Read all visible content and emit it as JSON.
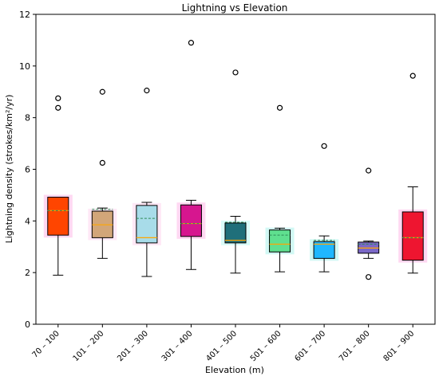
{
  "chart_data": {
    "type": "box",
    "title": "Lightning vs Elevation",
    "xlabel": "Elevation (m)",
    "ylabel": "Lightning density (strokes/km²/yr)",
    "ylim": [
      0,
      12
    ],
    "yticks": [
      "0",
      "2",
      "4",
      "6",
      "8",
      "10",
      "12"
    ],
    "grid": false,
    "categories": [
      "70 – 100",
      "101 – 200",
      "201 – 300",
      "301 – 400",
      "401 – 500",
      "501 – 600",
      "601 – 700",
      "701 – 800",
      "801 – 900"
    ],
    "boxes": [
      {
        "whislo": 1.9,
        "q1": 3.45,
        "med": 4.4,
        "mean": 4.4,
        "q3": 4.92,
        "whishi": 4.92,
        "fliers": [
          8.38,
          8.75
        ],
        "color": "#ff4500",
        "glow": "#ffd1f0"
      },
      {
        "whislo": 2.55,
        "q1": 3.35,
        "med": 3.85,
        "mean": 4.45,
        "q3": 4.38,
        "whishi": 4.5,
        "fliers": [
          6.25,
          9.0
        ],
        "color": "#d2a679",
        "glow": "#ffe4f5"
      },
      {
        "whislo": 1.85,
        "q1": 3.15,
        "med": 3.35,
        "mean": 4.1,
        "q3": 4.6,
        "whishi": 4.72,
        "fliers": [
          9.05
        ],
        "color": "#a8dce9",
        "glow": "#ffe4f5"
      },
      {
        "whislo": 2.12,
        "q1": 3.4,
        "med": 3.9,
        "mean": 3.9,
        "q3": 4.62,
        "whishi": 4.8,
        "fliers": [
          10.9
        ],
        "color": "#d6168f",
        "glow": "#ffd1f0"
      },
      {
        "whislo": 1.98,
        "q1": 3.15,
        "med": 3.25,
        "mean": 3.95,
        "q3": 3.92,
        "whishi": 4.18,
        "fliers": [
          9.75
        ],
        "color": "#1f6f7a",
        "glow": "#d4fbf8"
      },
      {
        "whislo": 2.03,
        "q1": 2.8,
        "med": 3.1,
        "mean": 3.45,
        "q3": 3.65,
        "whishi": 3.72,
        "fliers": [
          8.38
        ],
        "color": "#5fe08f",
        "glow": "#c9f7f2"
      },
      {
        "whislo": 2.03,
        "q1": 2.55,
        "med": 3.1,
        "mean": 3.25,
        "q3": 3.2,
        "whishi": 3.42,
        "fliers": [
          6.9
        ],
        "color": "#1fb7ff",
        "glow": "#c9f7f2"
      },
      {
        "whislo": 2.55,
        "q1": 2.75,
        "med": 2.95,
        "mean": 3.1,
        "q3": 3.18,
        "whishi": 3.22,
        "fliers": [
          1.83,
          5.95
        ],
        "color": "#7b68c7",
        "glow": "#ffffff"
      },
      {
        "whislo": 1.98,
        "q1": 2.48,
        "med": 3.35,
        "mean": 3.35,
        "q3": 4.35,
        "whishi": 5.32,
        "fliers": [
          9.62
        ],
        "color": "#ee1530",
        "glow": "#ffd1f0"
      }
    ],
    "median_color": "#ffa500",
    "mean_color": "#2e8b57"
  }
}
